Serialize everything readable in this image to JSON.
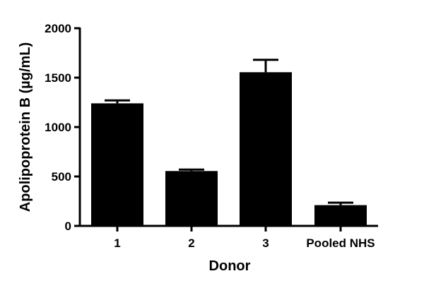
{
  "chart_data": {
    "type": "bar",
    "categories": [
      "1",
      "2",
      "3",
      "Pooled NHS"
    ],
    "values": [
      1240,
      555,
      1555,
      210
    ],
    "error_upper": [
      1270,
      570,
      1680,
      235
    ],
    "xlabel": "Donor",
    "ylabel": "Apolipoprotein B (µg/mL)",
    "ylim": [
      0,
      2000
    ],
    "yticks": [
      0,
      500,
      1000,
      1500,
      2000
    ],
    "grid": false,
    "legend": "none",
    "bar_color": "#000000"
  }
}
